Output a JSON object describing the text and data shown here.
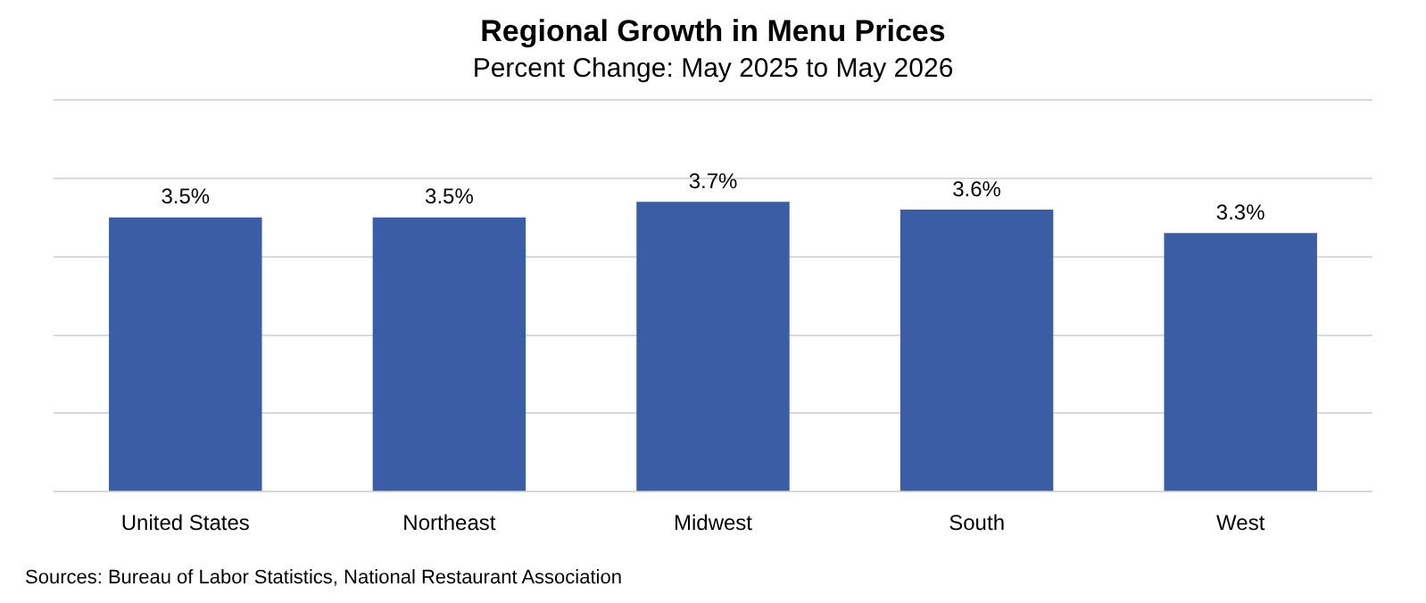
{
  "chart_data": {
    "type": "bar",
    "title": "Regional Growth in Menu Prices",
    "subtitle": "Percent Change: May 2025 to May 2026",
    "categories": [
      "United States",
      "Northeast",
      "Midwest",
      "South",
      "West"
    ],
    "values": [
      3.5,
      3.5,
      3.7,
      3.6,
      3.3
    ],
    "value_labels": [
      "3.5%",
      "3.5%",
      "3.7%",
      "3.6%",
      "3.3%"
    ],
    "color": "#3a5da6",
    "ylim": [
      0,
      5
    ],
    "yticks": [
      {
        "value": 0,
        "label": null
      },
      {
        "value": 1,
        "label": null
      },
      {
        "value": 2,
        "label": null
      },
      {
        "value": 3,
        "label": null
      },
      {
        "value": 4,
        "label": null
      },
      {
        "value": 5,
        "label": null
      }
    ],
    "grid": "y",
    "tick_labels": "x",
    "annotations": [
      "Sources: Bureau of Labor Statistics, National Restaurant Association"
    ]
  }
}
